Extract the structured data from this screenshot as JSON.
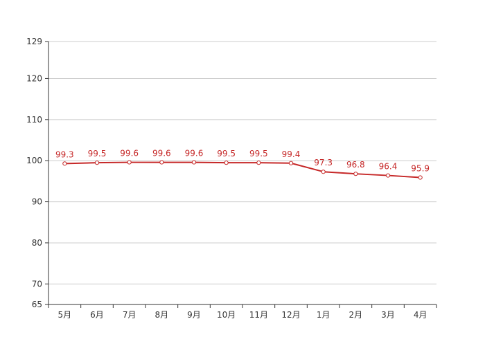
{
  "chart_data": {
    "type": "line",
    "categories": [
      "5月",
      "6月",
      "7月",
      "8月",
      "9月",
      "10月",
      "11月",
      "12月",
      "1月",
      "2月",
      "3月",
      "4月"
    ],
    "series": [
      {
        "values": [
          99.3,
          99.5,
          99.6,
          99.6,
          99.6,
          99.5,
          99.5,
          99.4,
          97.3,
          96.8,
          96.4,
          95.9
        ]
      }
    ],
    "data_labels": [
      "99.3",
      "99.5",
      "99.6",
      "99.6",
      "99.6",
      "99.5",
      "99.5",
      "99.4",
      "97.3",
      "96.8",
      "96.4",
      "95.9"
    ],
    "y_ticks": [
      65,
      70,
      80,
      90,
      100,
      110,
      120,
      129
    ],
    "ylim": [
      65,
      129
    ],
    "grid": true,
    "line_color": "#c62828",
    "grid_color": "#cccccc",
    "axis_color": "#333333"
  }
}
